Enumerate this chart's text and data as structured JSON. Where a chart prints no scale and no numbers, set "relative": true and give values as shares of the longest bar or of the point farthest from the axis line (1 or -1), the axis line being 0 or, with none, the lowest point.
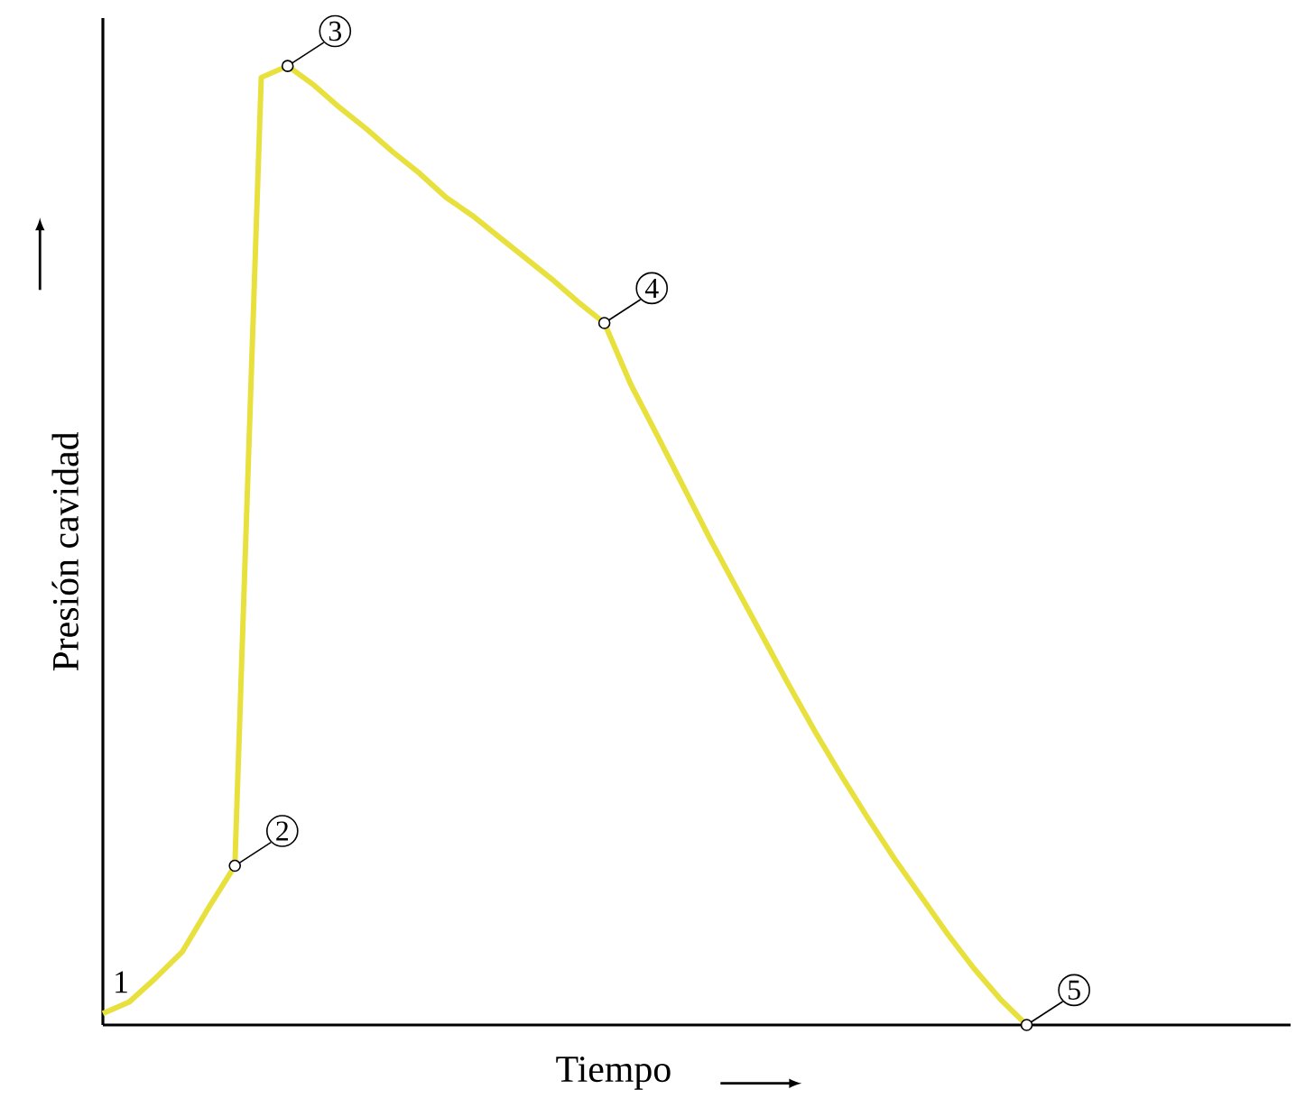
{
  "chart_data": {
    "type": "line",
    "relative": true,
    "xlabel": "Tiempo",
    "ylabel": "Presión cavidad",
    "tick_labels": false,
    "marker": "none",
    "categories": [
      null,
      null,
      null,
      null,
      null,
      null,
      null,
      null,
      null,
      null,
      null,
      null,
      null,
      null,
      null,
      null,
      null,
      null,
      null,
      null,
      null,
      null,
      null,
      null,
      null,
      null,
      null,
      null,
      null,
      null,
      null,
      null,
      null,
      null,
      null,
      null,
      null,
      null,
      null,
      null,
      null,
      null,
      null,
      null,
      null,
      null
    ],
    "series": [
      {
        "color": "#e8e03c",
        "values": [
          0.012,
          0.024,
          0.049,
          0.076,
          0.122,
          0.166,
          0.988,
          1.0,
          0.98,
          0.956,
          0.934,
          0.91,
          0.888,
          0.863,
          0.844,
          0.822,
          0.8,
          0.778,
          0.754,
          0.732,
          0.668,
          0.615,
          0.561,
          0.507,
          0.456,
          0.405,
          0.354,
          0.305,
          0.259,
          0.215,
          0.173,
          0.134,
          0.095,
          0.059,
          0.027,
          0,
          null,
          null,
          null,
          null,
          null,
          null,
          null,
          null,
          null,
          null
        ]
      }
    ],
    "annotations": [
      "1",
      "2",
      "3",
      "4",
      "5"
    ]
  }
}
